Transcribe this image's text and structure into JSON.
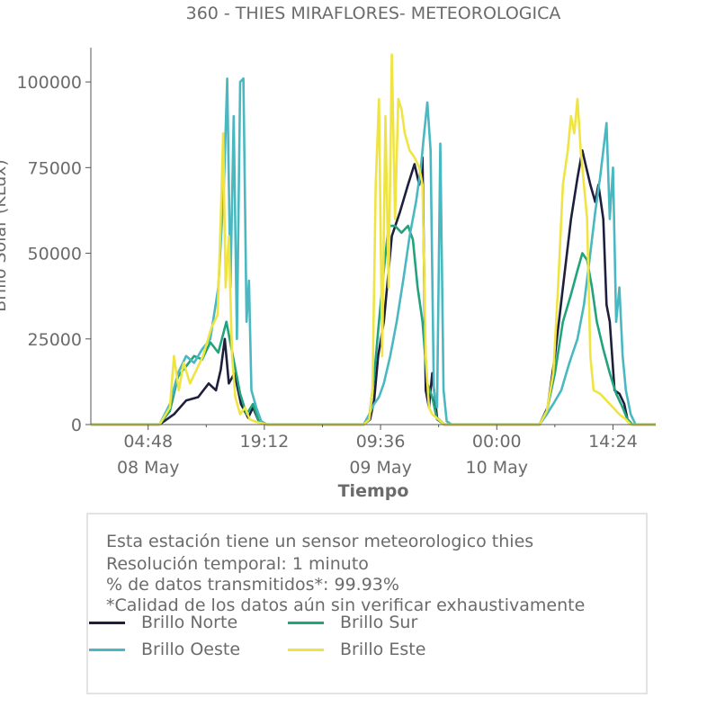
{
  "chart_data": {
    "type": "line",
    "title": "360 - THIES MIRAFLORES- METEOROLOGICA",
    "xlabel": "Tiempo",
    "ylabel": "Brillo Solar (KLux)",
    "ylim": [
      0,
      110000
    ],
    "yticks": [
      0,
      25000,
      50000,
      75000,
      100000
    ],
    "xlim": [
      0,
      64.4
    ],
    "xticks": [
      {
        "t": 4.8,
        "label": "04:48",
        "sub": "08 May"
      },
      {
        "t": 19.2,
        "label": "19:12",
        "sub": ""
      },
      {
        "t": 33.6,
        "label": "09:36",
        "sub": "09 May"
      },
      {
        "t": 48.0,
        "label": "00:00",
        "sub": "10 May"
      },
      {
        "t": 62.4,
        "label": "14:24",
        "sub": ""
      }
    ],
    "grid": false,
    "legend_position": "bottom",
    "series": [
      {
        "name": "Brillo Norte",
        "color": "#1e1f3d",
        "points": [
          [
            -2.3,
            0
          ],
          [
            6.2,
            0
          ],
          [
            8,
            3000
          ],
          [
            9.5,
            7000
          ],
          [
            11,
            8000
          ],
          [
            12.3,
            12000
          ],
          [
            13.2,
            10000
          ],
          [
            13.8,
            16000
          ],
          [
            14.3,
            25000
          ],
          [
            14.8,
            12000
          ],
          [
            15.5,
            15000
          ],
          [
            16.3,
            6000
          ],
          [
            17.2,
            2000
          ],
          [
            17.8,
            5000
          ],
          [
            18.5,
            1000
          ],
          [
            19.5,
            0
          ],
          [
            31.5,
            0
          ],
          [
            32.3,
            1500
          ],
          [
            32.8,
            7000
          ],
          [
            33.3,
            20000
          ],
          [
            34,
            30000
          ],
          [
            35,
            55000
          ],
          [
            36,
            62000
          ],
          [
            37,
            70000
          ],
          [
            37.8,
            76000
          ],
          [
            38.4,
            70000
          ],
          [
            38.8,
            78000
          ],
          [
            39.2,
            10000
          ],
          [
            39.6,
            5000
          ],
          [
            40,
            15000
          ],
          [
            40.6,
            2000
          ],
          [
            41.5,
            0
          ],
          [
            53.3,
            0
          ],
          [
            54.3,
            5000
          ],
          [
            55.2,
            20000
          ],
          [
            56.2,
            40000
          ],
          [
            57.2,
            60000
          ],
          [
            58,
            72000
          ],
          [
            58.6,
            80000
          ],
          [
            59,
            76000
          ],
          [
            59.6,
            70000
          ],
          [
            60.2,
            65000
          ],
          [
            60.6,
            70000
          ],
          [
            61.2,
            60000
          ],
          [
            61.6,
            35000
          ],
          [
            62,
            30000
          ],
          [
            62.6,
            10000
          ],
          [
            63.2,
            9000
          ],
          [
            63.8,
            6000
          ],
          [
            64.2,
            1500
          ],
          [
            64.8,
            0
          ],
          [
            67.7,
            0
          ]
        ]
      },
      {
        "name": "Brillo Sur",
        "color": "#21a37c",
        "points": [
          [
            -2.3,
            0
          ],
          [
            6.2,
            0
          ],
          [
            7.5,
            4000
          ],
          [
            8.5,
            14000
          ],
          [
            9.5,
            17000
          ],
          [
            10.5,
            20000
          ],
          [
            11.5,
            19000
          ],
          [
            12.5,
            24000
          ],
          [
            13.5,
            21000
          ],
          [
            14.5,
            30000
          ],
          [
            15.3,
            20000
          ],
          [
            16.2,
            9000
          ],
          [
            17,
            3000
          ],
          [
            17.8,
            6000
          ],
          [
            18.5,
            1000
          ],
          [
            19.5,
            0
          ],
          [
            31.5,
            0
          ],
          [
            32.2,
            2000
          ],
          [
            32.8,
            14000
          ],
          [
            33.4,
            30000
          ],
          [
            34,
            45000
          ],
          [
            34.6,
            58000
          ],
          [
            35.4,
            58000
          ],
          [
            36.2,
            56000
          ],
          [
            37,
            58000
          ],
          [
            37.6,
            54000
          ],
          [
            38.2,
            40000
          ],
          [
            38.8,
            30000
          ],
          [
            39.4,
            12000
          ],
          [
            40,
            8000
          ],
          [
            40.6,
            1500
          ],
          [
            41.5,
            0
          ],
          [
            53.3,
            0
          ],
          [
            54.2,
            4000
          ],
          [
            55.2,
            15000
          ],
          [
            56.2,
            30000
          ],
          [
            57.2,
            38000
          ],
          [
            58,
            45000
          ],
          [
            58.6,
            50000
          ],
          [
            59.2,
            48000
          ],
          [
            59.8,
            40000
          ],
          [
            60.4,
            30000
          ],
          [
            61.2,
            22000
          ],
          [
            62,
            15000
          ],
          [
            62.8,
            9000
          ],
          [
            63.6,
            5000
          ],
          [
            64.2,
            1500
          ],
          [
            64.8,
            0
          ],
          [
            67.7,
            0
          ]
        ]
      },
      {
        "name": "Brillo Oeste",
        "color": "#4ab8c1",
        "points": [
          [
            -2.3,
            0
          ],
          [
            6.2,
            0
          ],
          [
            7.5,
            6000
          ],
          [
            8.5,
            15000
          ],
          [
            9.5,
            20000
          ],
          [
            10.5,
            18000
          ],
          [
            11.5,
            22000
          ],
          [
            12.5,
            25000
          ],
          [
            13.5,
            40000
          ],
          [
            14.2,
            70000
          ],
          [
            14.6,
            101000
          ],
          [
            15,
            40000
          ],
          [
            15.4,
            90000
          ],
          [
            15.8,
            25000
          ],
          [
            16.2,
            100000
          ],
          [
            16.6,
            101000
          ],
          [
            17,
            30000
          ],
          [
            17.3,
            42000
          ],
          [
            17.6,
            10000
          ],
          [
            18.2,
            5000
          ],
          [
            18.8,
            1000
          ],
          [
            19.5,
            0
          ],
          [
            31.5,
            0
          ],
          [
            32.2,
            3000
          ],
          [
            32.8,
            6000
          ],
          [
            33.4,
            8000
          ],
          [
            34,
            12000
          ],
          [
            34.8,
            20000
          ],
          [
            35.6,
            30000
          ],
          [
            36.4,
            42000
          ],
          [
            37.2,
            55000
          ],
          [
            38,
            65000
          ],
          [
            38.6,
            75000
          ],
          [
            39,
            85000
          ],
          [
            39.4,
            94000
          ],
          [
            39.8,
            80000
          ],
          [
            40.2,
            10000
          ],
          [
            40.6,
            5000
          ],
          [
            41,
            82000
          ],
          [
            41.4,
            10000
          ],
          [
            41.8,
            1000
          ],
          [
            42.4,
            0
          ],
          [
            53.3,
            0
          ],
          [
            54.2,
            3000
          ],
          [
            55,
            6000
          ],
          [
            56,
            10000
          ],
          [
            57,
            18000
          ],
          [
            58,
            25000
          ],
          [
            58.8,
            35000
          ],
          [
            59.6,
            50000
          ],
          [
            60.2,
            62000
          ],
          [
            60.8,
            72000
          ],
          [
            61.2,
            80000
          ],
          [
            61.6,
            88000
          ],
          [
            62,
            60000
          ],
          [
            62.4,
            75000
          ],
          [
            62.8,
            30000
          ],
          [
            63.2,
            40000
          ],
          [
            63.6,
            20000
          ],
          [
            64,
            10000
          ],
          [
            64.6,
            3000
          ],
          [
            65.2,
            0
          ],
          [
            67.7,
            0
          ]
        ]
      },
      {
        "name": "Brillo Este",
        "color": "#f0e443",
        "points": [
          [
            -2.3,
            0
          ],
          [
            6.2,
            0
          ],
          [
            7.5,
            5000
          ],
          [
            8,
            20000
          ],
          [
            8.6,
            10000
          ],
          [
            9.2,
            18000
          ],
          [
            10,
            12000
          ],
          [
            10.8,
            16000
          ],
          [
            11.6,
            20000
          ],
          [
            12.6,
            28000
          ],
          [
            13.4,
            32000
          ],
          [
            13.8,
            60000
          ],
          [
            14.1,
            85000
          ],
          [
            14.4,
            40000
          ],
          [
            14.8,
            55000
          ],
          [
            15.2,
            20000
          ],
          [
            15.6,
            8000
          ],
          [
            16.2,
            3000
          ],
          [
            16.8,
            5000
          ],
          [
            17.4,
            1500
          ],
          [
            18.2,
            800
          ],
          [
            19.5,
            0
          ],
          [
            31.5,
            0
          ],
          [
            32.2,
            1500
          ],
          [
            32.6,
            10000
          ],
          [
            33,
            70000
          ],
          [
            33.4,
            95000
          ],
          [
            33.8,
            20000
          ],
          [
            34.2,
            90000
          ],
          [
            34.6,
            40000
          ],
          [
            35,
            108000
          ],
          [
            35.4,
            60000
          ],
          [
            35.8,
            95000
          ],
          [
            36.2,
            92000
          ],
          [
            36.6,
            85000
          ],
          [
            37.2,
            80000
          ],
          [
            37.8,
            78000
          ],
          [
            38.4,
            75000
          ],
          [
            38.8,
            70000
          ],
          [
            39.2,
            20000
          ],
          [
            39.6,
            5000
          ],
          [
            40,
            3000
          ],
          [
            40.8,
            1500
          ],
          [
            41.5,
            0
          ],
          [
            53.3,
            0
          ],
          [
            54.2,
            4000
          ],
          [
            55,
            15000
          ],
          [
            55.6,
            40000
          ],
          [
            56.2,
            70000
          ],
          [
            56.8,
            80000
          ],
          [
            57.2,
            90000
          ],
          [
            57.6,
            85000
          ],
          [
            58,
            95000
          ],
          [
            58.4,
            80000
          ],
          [
            58.8,
            70000
          ],
          [
            59.2,
            60000
          ],
          [
            59.6,
            20000
          ],
          [
            60,
            10000
          ],
          [
            60.8,
            9000
          ],
          [
            61.6,
            7000
          ],
          [
            62.4,
            5000
          ],
          [
            63.2,
            3000
          ],
          [
            64,
            1500
          ],
          [
            64.6,
            0
          ],
          [
            67.7,
            0
          ]
        ]
      }
    ]
  },
  "info": {
    "line1": "Esta estación tiene un sensor meteorologico thies",
    "line2": "Resolución temporal: 1 minuto",
    "line3": "% de datos transmitidos*: 99.93%",
    "line4": "*Calidad de los datos aún sin verificar exhaustivamente"
  }
}
